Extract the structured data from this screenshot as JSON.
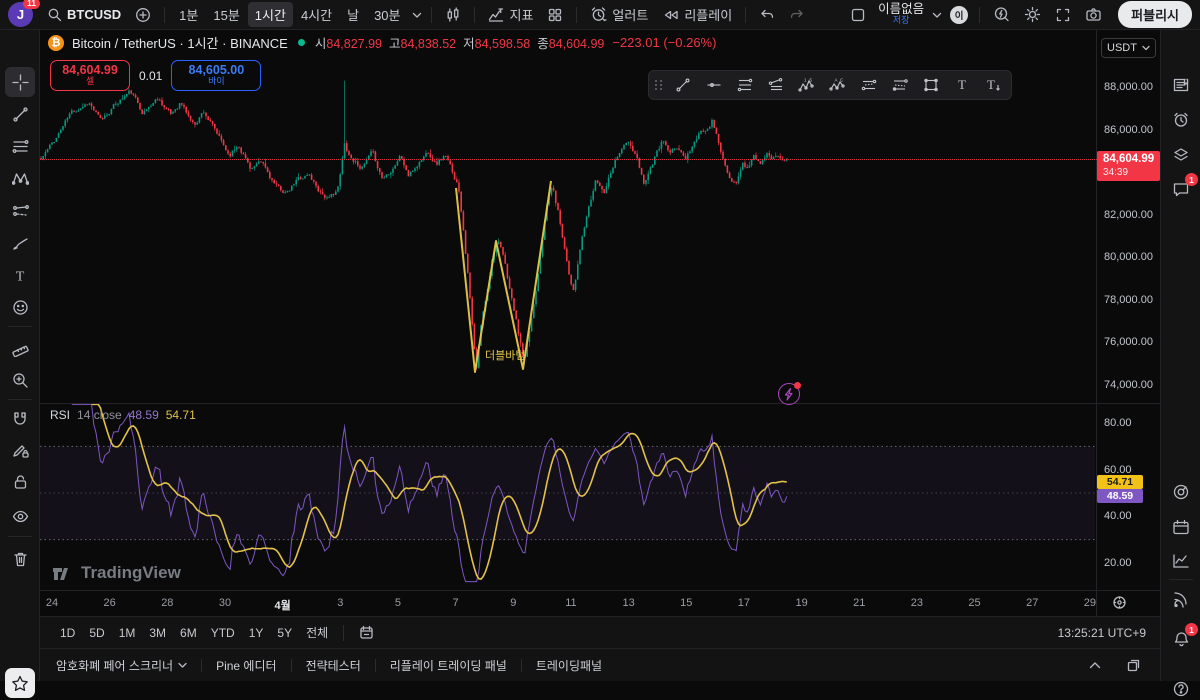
{
  "topbar": {
    "symbol_search": "BTCUSD",
    "timeframes": [
      "1분",
      "15분",
      "1시간",
      "4시간",
      "날",
      "30분"
    ],
    "selected_timeframe": "1시간",
    "indicators_label": "지표",
    "alert_label": "얼러트",
    "replay_label": "리플레이",
    "layout_name": "이름없음",
    "save_label": "저장",
    "cloud_badge": "이",
    "publish_label": "퍼블리시",
    "avatar_initial": "J",
    "avatar_badge": "11"
  },
  "symbol_header": {
    "title": "Bitcoin / TetherUS · 1시간 · BINANCE",
    "fields": [
      {
        "label": "시",
        "value": "84,827.99"
      },
      {
        "label": "고",
        "value": "84,838.52"
      },
      {
        "label": "저",
        "value": "84,598.58"
      },
      {
        "label": "종",
        "value": "84,604.99"
      }
    ],
    "change": "−223.01 (−0.26%)"
  },
  "trade_panel": {
    "sell_price": "84,604.99",
    "sell_label": "셀",
    "qty": "0.01",
    "buy_price": "84,605.00",
    "buy_label": "바이"
  },
  "price_axis": {
    "currency": "USDT",
    "last_badge": {
      "price": "84,604.99",
      "countdown": "34:39"
    }
  },
  "rsi_panel": {
    "title": "RSI",
    "params": "14 close",
    "value_line": "48.59",
    "value_ma": "54.71",
    "badge_line": "48.59",
    "badge_ma": "54.71"
  },
  "annotation": {
    "double_bottom": "더블바텀"
  },
  "watermark": "TradingView",
  "range_bar": {
    "ranges": [
      "1D",
      "5D",
      "1M",
      "3M",
      "6M",
      "YTD",
      "1Y",
      "5Y",
      "전체"
    ],
    "clock": "13:25:21 UTC+9"
  },
  "bottom_tabs": {
    "tabs": [
      "암호화폐 페어 스크리너",
      "Pine 에디터",
      "전략테스터",
      "리플레이 트레이딩 패널",
      "트레이딩패널"
    ]
  },
  "colors": {
    "candle_up": "#089981",
    "candle_down": "#f23645",
    "accent_blue": "#2962ff",
    "accent_red": "#f23645",
    "rsi_line": "#7e57c2",
    "rsi_ma": "#e3c14b",
    "badge_red": "#f23645",
    "badge_yellow": "#f2c218",
    "badge_purple": "#7e57c2",
    "drawing_yellow": "#e8c94a"
  },
  "chart_data": {
    "type": "candlestick",
    "symbol": "BTCUSD",
    "name": "Bitcoin / TetherUS",
    "exchange": "BINANCE",
    "interval": "1시간",
    "ohlc": {
      "open": 84827.99,
      "high": 84838.52,
      "low": 84598.58,
      "close": 84604.99
    },
    "change": -223.01,
    "change_pct": -0.26,
    "last_price": 84604.99,
    "countdown": "34:39",
    "price_axis": [
      88000,
      86000,
      82000,
      80000,
      78000,
      76000,
      74000
    ],
    "y_range": [
      73600,
      88600
    ],
    "x_labels": [
      "24",
      "26",
      "28",
      "30",
      "4월",
      "3",
      "5",
      "7",
      "9",
      "11",
      "13",
      "15",
      "17",
      "19",
      "21",
      "23",
      "25",
      "27",
      "29"
    ],
    "price_path": [
      [
        0.0,
        84600
      ],
      [
        0.02,
        85600
      ],
      [
        0.04,
        86800
      ],
      [
        0.064,
        87300
      ],
      [
        0.08,
        86400
      ],
      [
        0.1,
        87200
      ],
      [
        0.12,
        87800
      ],
      [
        0.137,
        86800
      ],
      [
        0.157,
        87500
      ],
      [
        0.174,
        86700
      ],
      [
        0.187,
        87300
      ],
      [
        0.205,
        86200
      ],
      [
        0.218,
        86900
      ],
      [
        0.234,
        85900
      ],
      [
        0.252,
        84800
      ],
      [
        0.265,
        85300
      ],
      [
        0.281,
        84200
      ],
      [
        0.297,
        84400
      ],
      [
        0.315,
        83300
      ],
      [
        0.331,
        83000
      ],
      [
        0.345,
        83700
      ],
      [
        0.359,
        83900
      ],
      [
        0.372,
        83200
      ],
      [
        0.386,
        82700
      ],
      [
        0.399,
        83300
      ],
      [
        0.407,
        85300
      ],
      [
        0.415,
        84700
      ],
      [
        0.431,
        84200
      ],
      [
        0.444,
        84900
      ],
      [
        0.458,
        83700
      ],
      [
        0.471,
        84200
      ],
      [
        0.482,
        84800
      ],
      [
        0.493,
        83800
      ],
      [
        0.506,
        84400
      ],
      [
        0.519,
        85000
      ],
      [
        0.53,
        84400
      ],
      [
        0.541,
        84800
      ],
      [
        0.552,
        84000
      ],
      [
        0.56,
        83300
      ],
      [
        0.566,
        81500
      ],
      [
        0.573,
        79000
      ],
      [
        0.58,
        76000
      ],
      [
        0.584,
        74700
      ],
      [
        0.59,
        76800
      ],
      [
        0.598,
        78400
      ],
      [
        0.606,
        80200
      ],
      [
        0.612,
        80800
      ],
      [
        0.62,
        80000
      ],
      [
        0.628,
        78600
      ],
      [
        0.636,
        77200
      ],
      [
        0.643,
        75900
      ],
      [
        0.648,
        75000
      ],
      [
        0.655,
        76500
      ],
      [
        0.663,
        78300
      ],
      [
        0.671,
        80600
      ],
      [
        0.679,
        82600
      ],
      [
        0.685,
        83400
      ],
      [
        0.693,
        82200
      ],
      [
        0.701,
        80700
      ],
      [
        0.71,
        78900
      ],
      [
        0.715,
        78500
      ],
      [
        0.723,
        80400
      ],
      [
        0.734,
        82300
      ],
      [
        0.744,
        83600
      ],
      [
        0.755,
        83100
      ],
      [
        0.766,
        84300
      ],
      [
        0.777,
        85100
      ],
      [
        0.787,
        85400
      ],
      [
        0.798,
        84700
      ],
      [
        0.808,
        83500
      ],
      [
        0.817,
        84200
      ],
      [
        0.826,
        84900
      ],
      [
        0.834,
        85500
      ],
      [
        0.843,
        84800
      ],
      [
        0.854,
        85200
      ],
      [
        0.863,
        84600
      ],
      [
        0.874,
        85300
      ],
      [
        0.884,
        85800
      ],
      [
        0.892,
        86100
      ],
      [
        0.9,
        86450
      ],
      [
        0.908,
        85500
      ],
      [
        0.916,
        84400
      ],
      [
        0.924,
        83500
      ],
      [
        0.932,
        83400
      ],
      [
        0.94,
        84400
      ],
      [
        0.948,
        84200
      ],
      [
        0.956,
        84800
      ],
      [
        0.964,
        84400
      ],
      [
        0.972,
        84900
      ],
      [
        0.98,
        84700
      ],
      [
        0.989,
        84850
      ],
      [
        1.0,
        84605
      ]
    ],
    "spike": {
      "t": 0.408,
      "high": 88300
    },
    "annotations": [
      {
        "type": "double-bottom-zigzag",
        "text": "더블바텀",
        "points_price": [
          [
            0.557,
            84300
          ],
          [
            0.582,
            74500
          ],
          [
            0.61,
            80800
          ],
          [
            0.647,
            74700
          ],
          [
            0.684,
            83600
          ]
        ]
      }
    ],
    "indicator": {
      "name": "RSI",
      "params": "14 close",
      "last_values": {
        "rsi": 48.59,
        "ma": 54.71
      },
      "axis": [
        80,
        60,
        40,
        20
      ],
      "bands": [
        70,
        50,
        30
      ],
      "y_range": [
        10,
        90
      ]
    }
  }
}
